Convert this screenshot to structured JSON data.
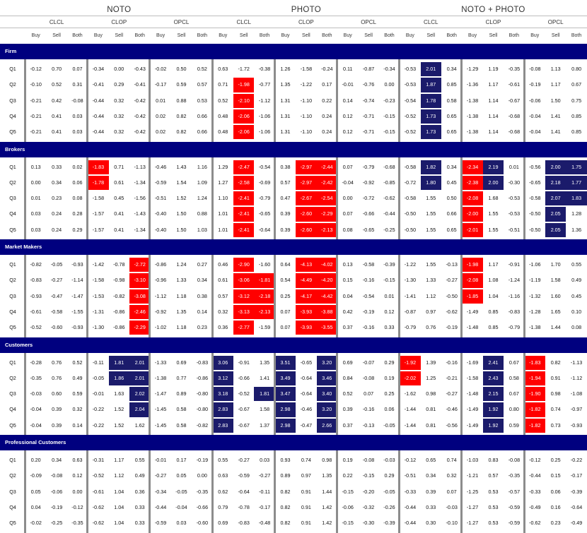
{
  "groups": [
    "NOTO",
    "PHOTO",
    "NOTO + PHOTO"
  ],
  "windows": [
    "CLCL",
    "CLOP",
    "OPCL"
  ],
  "sides": [
    "Buy",
    "Sell",
    "Both"
  ],
  "colors": {
    "header_bar": "#00007f",
    "red": "#ff0000",
    "blue": "#1b1b6b"
  },
  "sections": [
    {
      "title": "Firm",
      "rows": [
        {
          "q": "Q1",
          "v": [
            "-0.12",
            "0.70",
            "0.07",
            "-0.34",
            "0.00",
            "-0.43",
            "-0.02",
            "0.50",
            "0.52",
            "0.63",
            "-1.72",
            "-0.38",
            "1.26",
            "-1.58",
            "-0.24",
            "0.11",
            "-0.87",
            "-0.34",
            "-0.53",
            "2.01",
            "0.34",
            "-1.29",
            "1.19",
            "-0.35",
            "-0.08",
            "1.13",
            "0.80"
          ],
          "red": [],
          "blue": [
            19
          ]
        },
        {
          "q": "Q2",
          "v": [
            "-0.10",
            "0.52",
            "0.31",
            "-0.41",
            "0.29",
            "-0.41",
            "-0.17",
            "0.59",
            "0.57",
            "0.71",
            "-1.98",
            "-0.77",
            "1.35",
            "-1.22",
            "0.17",
            "-0.01",
            "-0.76",
            "0.00",
            "-0.53",
            "1.87",
            "0.85",
            "-1.36",
            "1.17",
            "-0.61",
            "-0.19",
            "1.17",
            "0.67"
          ],
          "red": [
            10
          ],
          "blue": [
            19
          ]
        },
        {
          "q": "Q3",
          "v": [
            "-0.21",
            "0.42",
            "-0.08",
            "-0.44",
            "0.32",
            "-0.42",
            "0.01",
            "0.88",
            "0.53",
            "0.52",
            "-2.10",
            "-1.12",
            "1.31",
            "-1.10",
            "0.22",
            "0.14",
            "-0.74",
            "-0.23",
            "-0.54",
            "1.78",
            "0.58",
            "-1.38",
            "1.14",
            "-0.67",
            "-0.06",
            "1.50",
            "0.75"
          ],
          "red": [
            10
          ],
          "blue": [
            19
          ]
        },
        {
          "q": "Q4",
          "v": [
            "-0.21",
            "0.41",
            "0.03",
            "-0.44",
            "0.32",
            "-0.42",
            "0.02",
            "0.82",
            "0.66",
            "0.48",
            "-2.06",
            "-1.06",
            "1.31",
            "-1.10",
            "0.24",
            "0.12",
            "-0.71",
            "-0.15",
            "-0.52",
            "1.73",
            "0.65",
            "-1.38",
            "1.14",
            "-0.68",
            "-0.04",
            "1.41",
            "0.85"
          ],
          "red": [
            10
          ],
          "blue": [
            19
          ]
        },
        {
          "q": "Q5",
          "v": [
            "-0.21",
            "0.41",
            "0.03",
            "-0.44",
            "0.32",
            "-0.42",
            "0.02",
            "0.82",
            "0.66",
            "0.48",
            "-2.06",
            "-1.06",
            "1.31",
            "-1.10",
            "0.24",
            "0.12",
            "-0.71",
            "-0.15",
            "-0.52",
            "1.73",
            "0.65",
            "-1.38",
            "1.14",
            "-0.68",
            "-0.04",
            "1.41",
            "0.85"
          ],
          "red": [
            10
          ],
          "blue": [
            19
          ]
        }
      ]
    },
    {
      "title": "Brokers",
      "rows": [
        {
          "q": "Q1",
          "v": [
            "0.13",
            "0.33",
            "0.02",
            "-1.83",
            "0.71",
            "-1.13",
            "-0.46",
            "1.43",
            "1.16",
            "1.29",
            "-2.47",
            "-0.54",
            "0.38",
            "-2.97",
            "-2.44",
            "0.07",
            "-0.79",
            "-0.68",
            "-0.58",
            "1.82",
            "0.34",
            "-2.34",
            "2.19",
            "0.01",
            "-0.56",
            "2.00",
            "1.75"
          ],
          "red": [
            3,
            10,
            13,
            14,
            21
          ],
          "blue": [
            19,
            22,
            25,
            26
          ]
        },
        {
          "q": "Q2",
          "v": [
            "0.00",
            "0.34",
            "0.06",
            "-1.78",
            "0.61",
            "-1.34",
            "-0.59",
            "1.54",
            "1.09",
            "1.27",
            "-2.58",
            "-0.69",
            "0.57",
            "-2.97",
            "-2.42",
            "-0.04",
            "-0.92",
            "-0.85",
            "-0.72",
            "1.80",
            "0.45",
            "-2.38",
            "2.00",
            "-0.30",
            "-0.65",
            "2.18",
            "1.77"
          ],
          "red": [
            3,
            10,
            13,
            14,
            21
          ],
          "blue": [
            19,
            22,
            25,
            26
          ]
        },
        {
          "q": "Q3",
          "v": [
            "0.01",
            "0.23",
            "0.08",
            "-1.58",
            "0.45",
            "-1.56",
            "-0.51",
            "1.52",
            "1.24",
            "1.10",
            "-2.41",
            "-0.79",
            "0.47",
            "-2.67",
            "-2.54",
            "0.00",
            "-0.72",
            "-0.62",
            "-0.58",
            "1.55",
            "0.50",
            "-2.08",
            "1.68",
            "-0.53",
            "-0.58",
            "2.07",
            "1.83"
          ],
          "red": [
            10,
            13,
            14,
            21
          ],
          "blue": [
            25,
            26
          ]
        },
        {
          "q": "Q4",
          "v": [
            "0.03",
            "0.24",
            "0.28",
            "-1.57",
            "0.41",
            "-1.43",
            "-0.40",
            "1.50",
            "0.88",
            "1.01",
            "-2.41",
            "-0.65",
            "0.39",
            "-2.60",
            "-2.29",
            "0.07",
            "-0.66",
            "-0.44",
            "-0.50",
            "1.55",
            "0.66",
            "-2.00",
            "1.55",
            "-0.53",
            "-0.50",
            "2.05",
            "1.28"
          ],
          "red": [
            10,
            13,
            14,
            21
          ],
          "blue": [
            25
          ]
        },
        {
          "q": "Q5",
          "v": [
            "0.03",
            "0.24",
            "0.29",
            "-1.57",
            "0.41",
            "-1.34",
            "-0.40",
            "1.50",
            "1.03",
            "1.01",
            "-2.41",
            "-0.64",
            "0.39",
            "-2.60",
            "-2.13",
            "0.08",
            "-0.65",
            "-0.25",
            "-0.50",
            "1.55",
            "0.65",
            "-2.01",
            "1.55",
            "-0.51",
            "-0.50",
            "2.05",
            "1.36"
          ],
          "red": [
            10,
            13,
            14,
            21
          ],
          "blue": [
            25
          ]
        }
      ]
    },
    {
      "title": "Market Makers",
      "rows": [
        {
          "q": "Q1",
          "v": [
            "-0.82",
            "-0.05",
            "-0.93",
            "-1.42",
            "-0.78",
            "-2.72",
            "-0.86",
            "1.24",
            "0.27",
            "0.46",
            "-2.90",
            "-1.60",
            "0.64",
            "-4.13",
            "-4.02",
            "0.13",
            "-0.58",
            "-0.39",
            "-1.22",
            "1.55",
            "-0.13",
            "-1.98",
            "1.17",
            "-0.91",
            "-1.06",
            "1.70",
            "0.55"
          ],
          "red": [
            5,
            10,
            13,
            14,
            21
          ],
          "blue": []
        },
        {
          "q": "Q2",
          "v": [
            "-0.83",
            "-0.27",
            "-1.14",
            "-1.58",
            "-0.98",
            "-3.10",
            "-0.96",
            "1.33",
            "0.34",
            "0.61",
            "-3.06",
            "-1.81",
            "0.54",
            "-4.49",
            "-4.20",
            "0.15",
            "-0.16",
            "-0.15",
            "-1.30",
            "1.33",
            "-0.27",
            "-2.08",
            "1.08",
            "-1.24",
            "-1.19",
            "1.58",
            "0.49"
          ],
          "red": [
            5,
            10,
            11,
            13,
            14,
            21
          ],
          "blue": []
        },
        {
          "q": "Q3",
          "v": [
            "-0.93",
            "-0.47",
            "-1.47",
            "-1.53",
            "-0.82",
            "-3.08",
            "-1.12",
            "1.18",
            "0.38",
            "0.57",
            "-3.12",
            "-2.18",
            "0.25",
            "-4.17",
            "-4.42",
            "0.04",
            "-0.54",
            "0.01",
            "-1.41",
            "1.12",
            "-0.50",
            "-1.85",
            "1.04",
            "-1.16",
            "-1.32",
            "1.60",
            "0.45"
          ],
          "red": [
            5,
            10,
            11,
            13,
            14,
            21
          ],
          "blue": []
        },
        {
          "q": "Q4",
          "v": [
            "-0.61",
            "-0.58",
            "-1.55",
            "-1.31",
            "-0.86",
            "-2.46",
            "-0.92",
            "1.35",
            "0.14",
            "0.32",
            "-3.13",
            "-2.13",
            "0.07",
            "-3.93",
            "-3.88",
            "0.42",
            "-0.19",
            "0.12",
            "-0.87",
            "0.97",
            "-0.62",
            "-1.49",
            "0.85",
            "-0.83",
            "-1.28",
            "1.65",
            "0.10"
          ],
          "red": [
            5,
            10,
            11,
            13,
            14
          ],
          "blue": []
        },
        {
          "q": "Q5",
          "v": [
            "-0.52",
            "-0.60",
            "-0.93",
            "-1.30",
            "-0.86",
            "-2.29",
            "-1.02",
            "1.18",
            "0.23",
            "0.36",
            "-2.77",
            "-1.59",
            "0.07",
            "-3.93",
            "-3.55",
            "0.37",
            "-0.16",
            "0.33",
            "-0.79",
            "0.76",
            "-0.19",
            "-1.48",
            "0.85",
            "-0.79",
            "-1.38",
            "1.44",
            "0.08"
          ],
          "red": [
            5,
            10,
            13,
            14
          ],
          "blue": []
        }
      ]
    },
    {
      "title": "Customers",
      "rows": [
        {
          "q": "Q1",
          "v": [
            "-0.28",
            "0.76",
            "0.52",
            "-0.11",
            "1.81",
            "2.01",
            "-1.33",
            "0.69",
            "-0.83",
            "3.06",
            "-0.91",
            "1.35",
            "3.51",
            "-0.65",
            "3.20",
            "0.69",
            "-0.07",
            "0.29",
            "-1.92",
            "1.39",
            "-0.16",
            "-1.69",
            "2.41",
            "0.67",
            "-1.83",
            "0.82",
            "-1.13"
          ],
          "red": [
            18,
            24
          ],
          "blue": [
            4,
            5,
            9,
            12,
            14,
            22
          ]
        },
        {
          "q": "Q2",
          "v": [
            "-0.35",
            "0.76",
            "0.49",
            "-0.05",
            "1.86",
            "2.01",
            "-1.38",
            "0.77",
            "-0.86",
            "3.12",
            "-0.66",
            "1.41",
            "3.49",
            "-0.64",
            "3.46",
            "0.84",
            "-0.08",
            "0.19",
            "-2.02",
            "1.25",
            "-0.21",
            "-1.58",
            "2.43",
            "0.58",
            "-1.94",
            "0.91",
            "-1.12"
          ],
          "red": [
            18,
            24
          ],
          "blue": [
            4,
            5,
            9,
            12,
            14,
            22
          ]
        },
        {
          "q": "Q3",
          "v": [
            "-0.03",
            "0.60",
            "0.59",
            "-0.01",
            "1.63",
            "2.02",
            "-1.47",
            "0.89",
            "-0.80",
            "3.18",
            "-0.52",
            "1.81",
            "3.47",
            "-0.64",
            "3.40",
            "0.52",
            "0.07",
            "0.25",
            "-1.62",
            "0.98",
            "-0.27",
            "-1.48",
            "2.15",
            "0.67",
            "-1.90",
            "0.98",
            "-1.08"
          ],
          "red": [
            24
          ],
          "blue": [
            5,
            9,
            11,
            12,
            14,
            22
          ]
        },
        {
          "q": "Q4",
          "v": [
            "-0.04",
            "0.39",
            "0.32",
            "-0.22",
            "1.52",
            "2.04",
            "-1.45",
            "0.58",
            "-0.80",
            "2.83",
            "-0.67",
            "1.58",
            "2.98",
            "-0.46",
            "3.20",
            "0.39",
            "-0.16",
            "0.06",
            "-1.44",
            "0.81",
            "-0.46",
            "-1.49",
            "1.92",
            "0.80",
            "-1.82",
            "0.74",
            "-0.97"
          ],
          "red": [
            24
          ],
          "blue": [
            5,
            9,
            12,
            14,
            22
          ]
        },
        {
          "q": "Q5",
          "v": [
            "-0.04",
            "0.39",
            "0.14",
            "-0.22",
            "1.52",
            "1.62",
            "-1.45",
            "0.58",
            "-0.82",
            "2.83",
            "-0.67",
            "1.37",
            "2.98",
            "-0.47",
            "2.66",
            "0.37",
            "-0.13",
            "-0.05",
            "-1.44",
            "0.81",
            "-0.56",
            "-1.49",
            "1.92",
            "0.59",
            "-1.82",
            "0.73",
            "-0.93"
          ],
          "red": [
            24
          ],
          "blue": [
            9,
            12,
            14,
            22
          ]
        }
      ]
    },
    {
      "title": "Professional Customers",
      "rows": [
        {
          "q": "Q1",
          "v": [
            "0.20",
            "0.34",
            "0.63",
            "-0.31",
            "1.17",
            "0.55",
            "-0.01",
            "0.17",
            "-0.19",
            "0.55",
            "-0.27",
            "0.03",
            "0.93",
            "0.74",
            "0.98",
            "0.19",
            "-0.08",
            "-0.03",
            "-0.12",
            "0.65",
            "0.74",
            "-1.03",
            "0.83",
            "-0.08",
            "-0.12",
            "0.25",
            "-0.22"
          ],
          "red": [],
          "blue": []
        },
        {
          "q": "Q2",
          "v": [
            "-0.09",
            "-0.08",
            "0.12",
            "-0.52",
            "1.12",
            "0.49",
            "-0.27",
            "0.05",
            "0.00",
            "0.63",
            "-0.59",
            "-0.27",
            "0.89",
            "0.97",
            "1.35",
            "0.22",
            "-0.15",
            "0.29",
            "-0.51",
            "0.34",
            "0.32",
            "-1.21",
            "0.57",
            "-0.35",
            "-0.44",
            "0.15",
            "-0.17"
          ],
          "red": [],
          "blue": []
        },
        {
          "q": "Q3",
          "v": [
            "0.05",
            "-0.06",
            "0.00",
            "-0.61",
            "1.04",
            "0.36",
            "-0.34",
            "-0.05",
            "-0.35",
            "0.62",
            "-0.64",
            "-0.11",
            "0.82",
            "0.91",
            "1.44",
            "-0.15",
            "-0.20",
            "-0.05",
            "-0.33",
            "0.39",
            "0.07",
            "-1.25",
            "0.53",
            "-0.57",
            "-0.33",
            "0.06",
            "-0.39"
          ],
          "red": [],
          "blue": []
        },
        {
          "q": "Q4",
          "v": [
            "0.04",
            "-0.19",
            "-0.12",
            "-0.62",
            "1.04",
            "0.33",
            "-0.44",
            "-0.04",
            "-0.66",
            "0.79",
            "-0.78",
            "-0.17",
            "0.82",
            "0.91",
            "1.42",
            "-0.06",
            "-0.32",
            "-0.26",
            "-0.44",
            "0.33",
            "-0.03",
            "-1.27",
            "0.53",
            "-0.59",
            "-0.49",
            "0.16",
            "-0.64"
          ],
          "red": [],
          "blue": []
        },
        {
          "q": "Q5",
          "v": [
            "-0.02",
            "-0.25",
            "-0.35",
            "-0.62",
            "1.04",
            "0.33",
            "-0.59",
            "0.03",
            "-0.60",
            "0.69",
            "-0.83",
            "-0.48",
            "0.82",
            "0.91",
            "1.42",
            "-0.15",
            "-0.30",
            "-0.39",
            "-0.44",
            "0.30",
            "-0.10",
            "-1.27",
            "0.53",
            "-0.59",
            "-0.62",
            "0.23",
            "-0.49"
          ],
          "red": [],
          "blue": []
        }
      ]
    }
  ]
}
